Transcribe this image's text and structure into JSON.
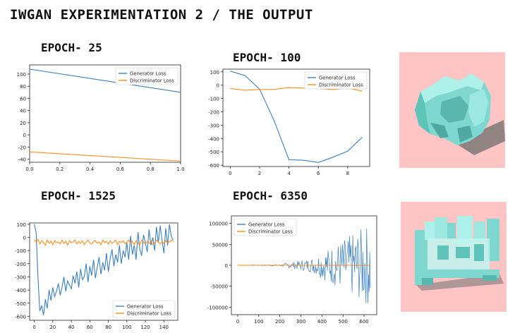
{
  "page": {
    "title": "IWGAN EXPERIMENTATION 2 / THE OUTPUT"
  },
  "colors": {
    "generator": "#3a7fc0",
    "discriminator": "#ff8c1a",
    "render_background": "#ffc4c4",
    "render_object": "#7fd8cf"
  },
  "renders": [
    {
      "icon": "voxel-chair-render"
    },
    {
      "icon": "voxel-structure-render"
    }
  ],
  "chart_data": [
    {
      "type": "line",
      "epoch_label": "EPOCH- 25",
      "xlim": [
        0,
        1
      ],
      "ylim": [
        -45,
        115
      ],
      "xticks": [
        0.0,
        0.2,
        0.4,
        0.6,
        0.8,
        1.0
      ],
      "xtick_labels": [
        "0.0",
        "0.2",
        "0.4",
        "0.6",
        "0.8",
        "1.0"
      ],
      "yticks": [
        100,
        80,
        60,
        40,
        20,
        0,
        -20,
        -40
      ],
      "legend_position": "top-right",
      "series": [
        {
          "name": "Generator Loss",
          "color_key": "generator",
          "x": [
            0,
            1
          ],
          "y": [
            108,
            70
          ]
        },
        {
          "name": "Discriminator Loss",
          "color_key": "discriminator",
          "x": [
            0,
            1
          ],
          "y": [
            -28,
            -43
          ]
        }
      ]
    },
    {
      "type": "line",
      "epoch_label": "EPOCH- 100",
      "xlim": [
        -0.5,
        9.5
      ],
      "ylim": [
        -610,
        120
      ],
      "xticks": [
        0,
        2,
        4,
        6,
        8
      ],
      "xtick_labels": [
        "0",
        "2",
        "4",
        "6",
        "8"
      ],
      "yticks": [
        100,
        0,
        -100,
        -200,
        -300,
        -400,
        -500,
        -600
      ],
      "legend_position": "top-right",
      "series": [
        {
          "name": "Generator Loss",
          "color_key": "generator",
          "x": [
            0,
            1,
            2,
            3,
            4,
            5,
            6,
            7,
            8,
            9
          ],
          "y": [
            105,
            72,
            -30,
            -270,
            -560,
            -563,
            -580,
            -540,
            -495,
            -390
          ]
        },
        {
          "name": "Discriminator Loss",
          "color_key": "discriminator",
          "x": [
            0,
            1,
            2,
            3,
            4,
            5,
            6,
            7,
            8,
            9
          ],
          "y": [
            -25,
            -38,
            -33,
            -32,
            -18,
            -22,
            -25,
            -33,
            -22,
            -45
          ]
        }
      ]
    },
    {
      "type": "line",
      "epoch_label": "EPOCH- 1525",
      "xlim": [
        -5,
        155
      ],
      "ylim": [
        -630,
        110
      ],
      "xticks": [
        0,
        20,
        40,
        60,
        80,
        100,
        120,
        140
      ],
      "xtick_labels": [
        "0",
        "20",
        "40",
        "60",
        "80",
        "100",
        "120",
        "140"
      ],
      "yticks": [
        100,
        0,
        -100,
        -200,
        -300,
        -400,
        -500,
        -600
      ],
      "legend_position": "bottom-right",
      "series": [
        {
          "name": "Generator Loss",
          "color_key": "generator",
          "x": [
            0,
            2,
            4,
            6,
            8,
            10,
            12,
            14,
            16,
            18,
            20,
            22,
            24,
            26,
            28,
            30,
            32,
            34,
            36,
            38,
            40,
            42,
            44,
            46,
            48,
            50,
            52,
            54,
            56,
            58,
            60,
            62,
            64,
            66,
            68,
            70,
            72,
            74,
            76,
            78,
            80,
            82,
            84,
            86,
            88,
            90,
            92,
            94,
            96,
            98,
            100,
            102,
            104,
            106,
            108,
            110,
            112,
            114,
            116,
            118,
            120,
            122,
            124,
            126,
            128,
            130,
            132,
            134,
            136,
            138,
            140,
            142,
            144,
            146,
            148,
            150
          ],
          "y": [
            100,
            40,
            -300,
            -560,
            -520,
            -590,
            -470,
            -540,
            -400,
            -480,
            -380,
            -450,
            -410,
            -350,
            -440,
            -380,
            -300,
            -410,
            -330,
            -360,
            -390,
            -290,
            -350,
            -260,
            -380,
            -240,
            -320,
            -300,
            -200,
            -340,
            -220,
            -290,
            -170,
            -310,
            -230,
            -150,
            -280,
            -190,
            -250,
            -120,
            -260,
            -160,
            -90,
            -220,
            -130,
            -190,
            -60,
            -200,
            -100,
            -150,
            -40,
            -170,
            10,
            -130,
            -60,
            -170,
            40,
            -90,
            -140,
            20,
            -40,
            -110,
            60,
            -60,
            0,
            -100,
            80,
            -40,
            90,
            -20,
            -120,
            70,
            -60,
            100,
            10,
            -20
          ]
        },
        {
          "name": "Discriminator Loss",
          "color_key": "discriminator",
          "x": [
            0,
            2,
            4,
            6,
            8,
            10,
            12,
            14,
            16,
            18,
            20,
            22,
            24,
            26,
            28,
            30,
            32,
            34,
            36,
            38,
            40,
            42,
            44,
            46,
            48,
            50,
            52,
            54,
            56,
            58,
            60,
            62,
            64,
            66,
            68,
            70,
            72,
            74,
            76,
            78,
            80,
            82,
            84,
            86,
            88,
            90,
            92,
            94,
            96,
            98,
            100,
            102,
            104,
            106,
            108,
            110,
            112,
            114,
            116,
            118,
            120,
            122,
            124,
            126,
            128,
            130,
            132,
            134,
            136,
            138,
            140,
            142,
            144,
            146,
            148,
            150
          ],
          "y": [
            -20,
            -35,
            -15,
            -50,
            -25,
            -40,
            -60,
            -20,
            -45,
            -30,
            -55,
            -25,
            -40,
            -35,
            -50,
            -20,
            -45,
            -30,
            -60,
            -25,
            -40,
            -35,
            -20,
            -50,
            -30,
            -45,
            -25,
            -55,
            -35,
            -20,
            -40,
            -50,
            -30,
            -25,
            -45,
            -35,
            -55,
            -20,
            -40,
            -30,
            -50,
            -25,
            -45,
            -35,
            -20,
            -55,
            -30,
            -40,
            -25,
            -50,
            -35,
            -20,
            -45,
            -30,
            -55,
            -25,
            -40,
            -60,
            -20,
            -35,
            -50,
            -30,
            -45,
            -25,
            -55,
            -40,
            -20,
            -35,
            -50,
            -30,
            -45,
            -25,
            -40,
            -35,
            -20,
            -30
          ]
        }
      ]
    },
    {
      "type": "line",
      "epoch_label": "EPOCH- 6350",
      "xlim": [
        -30,
        660
      ],
      "ylim": [
        -118000,
        118000
      ],
      "xticks": [
        0,
        100,
        200,
        300,
        400,
        500,
        600
      ],
      "xtick_labels": [
        "0",
        "100",
        "200",
        "300",
        "400",
        "500",
        "600"
      ],
      "yticks": [
        100000,
        50000,
        0,
        -50000,
        -100000
      ],
      "legend_position": "top-left",
      "series": [
        {
          "name": "Generator Loss",
          "color_key": "generator",
          "x": [],
          "y": []
        },
        {
          "name": "Discriminator Loss",
          "color_key": "discriminator",
          "x": [
            0,
            100,
            200,
            300,
            400,
            500,
            630
          ],
          "y": [
            0,
            0,
            0,
            0,
            0,
            0,
            0
          ]
        }
      ]
    }
  ]
}
